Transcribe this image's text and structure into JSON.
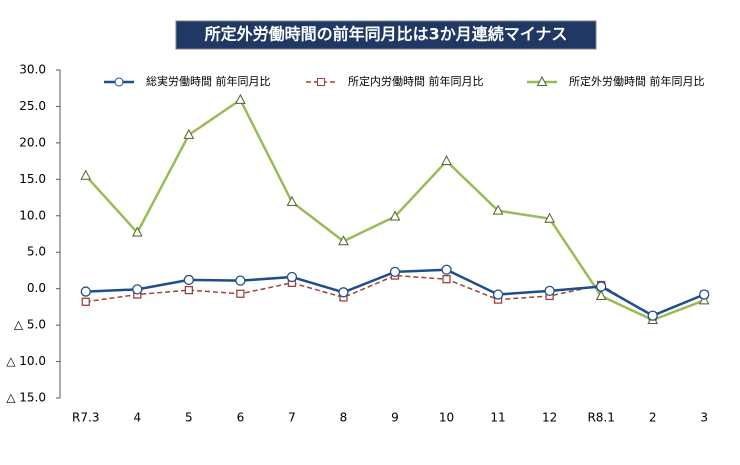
{
  "chart_data": {
    "type": "line",
    "title": "所定外労働時間の前年同月比は3か月連続マイナス",
    "categories": [
      "R7.3",
      "4",
      "5",
      "6",
      "7",
      "8",
      "9",
      "10",
      "11",
      "12",
      "R8.1",
      "2",
      "3"
    ],
    "series": [
      {
        "name": "総実労働時間 前年同月比",
        "color": "#1f4e8c",
        "marker": "circle",
        "line_style": "solid",
        "values": [
          -0.4,
          -0.1,
          1.2,
          1.1,
          1.6,
          -0.5,
          2.3,
          2.6,
          -0.8,
          -0.3,
          0.3,
          -3.7,
          -0.8
        ]
      },
      {
        "name": "所定内労働時間 前年同月比",
        "color": "#a0413c",
        "marker": "square",
        "line_style": "dashed",
        "values": [
          -1.8,
          -0.8,
          -0.2,
          -0.7,
          0.8,
          -1.2,
          1.8,
          1.3,
          -1.5,
          -1.0,
          0.5,
          -3.8,
          -0.8
        ]
      },
      {
        "name": "所定外労働時間 前年同月比",
        "color": "#9bbb59",
        "marker": "triangle",
        "line_style": "solid",
        "values": [
          15.5,
          7.7,
          21.1,
          25.9,
          11.9,
          6.5,
          9.9,
          17.5,
          10.7,
          9.6,
          -1.0,
          -4.3,
          -1.6
        ]
      }
    ],
    "ylim": [
      -15,
      30
    ],
    "yticks": [
      {
        "value": 30,
        "label": "30.0"
      },
      {
        "value": 25,
        "label": "25.0"
      },
      {
        "value": 20,
        "label": "20.0"
      },
      {
        "value": 15,
        "label": "15.0"
      },
      {
        "value": 10,
        "label": "10.0"
      },
      {
        "value": 5,
        "label": "5.0"
      },
      {
        "value": 0,
        "label": "0.0"
      },
      {
        "value": -5,
        "label": "△ 5.0"
      },
      {
        "value": -10,
        "label": "△ 10.0"
      },
      {
        "value": -15,
        "label": "△ 15.0"
      }
    ],
    "grid": false,
    "legend": "top"
  }
}
